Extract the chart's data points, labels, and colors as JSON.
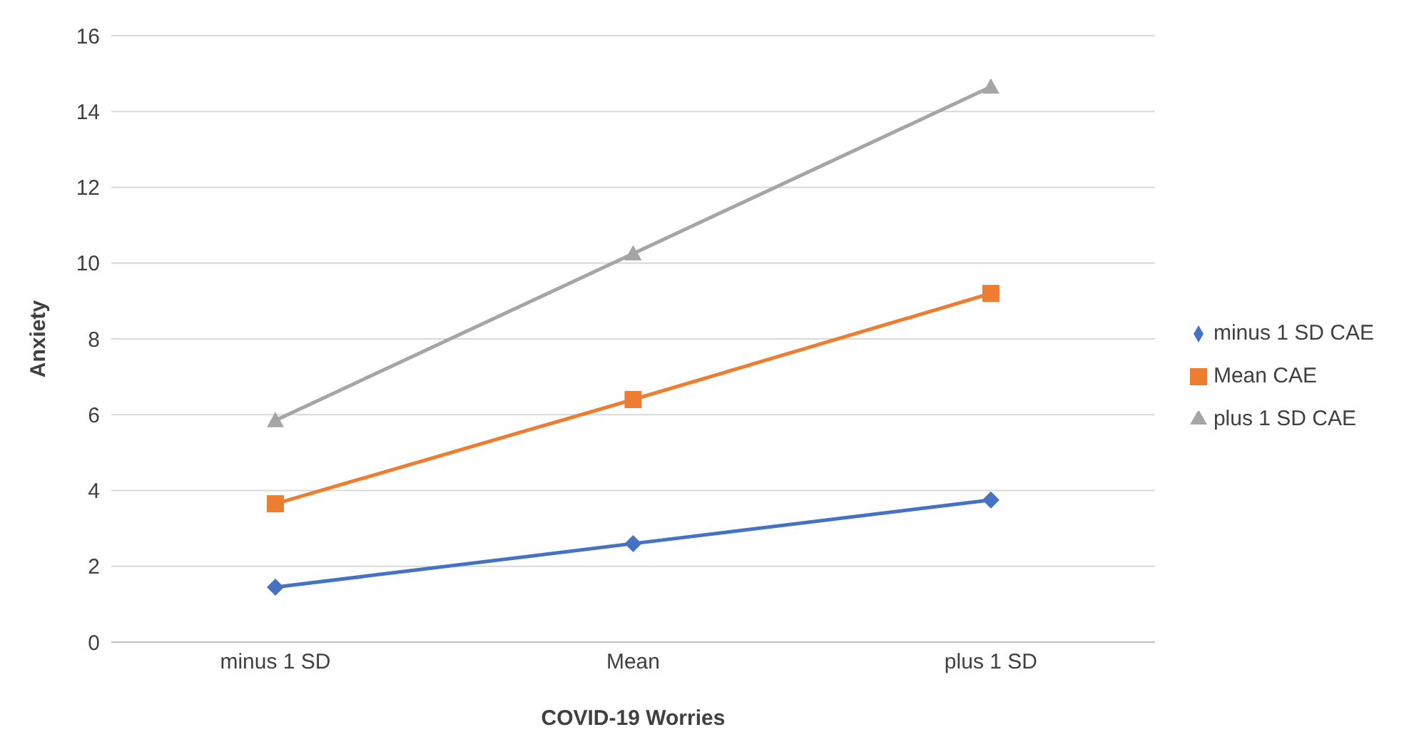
{
  "chart_data": {
    "type": "line",
    "xlabel": "COVID-19 Worries",
    "ylabel": "Anxiety",
    "categories": [
      "minus 1 SD",
      "Mean",
      "plus 1 SD"
    ],
    "series": [
      {
        "name": "minus 1 SD CAE",
        "color": "#4472c4",
        "marker": "diamond",
        "values": [
          1.45,
          2.6,
          3.75
        ]
      },
      {
        "name": "Mean CAE",
        "color": "#ed7d31",
        "marker": "square",
        "values": [
          3.65,
          6.4,
          9.2
        ]
      },
      {
        "name": "plus 1 SD CAE",
        "color": "#a5a5a5",
        "marker": "triangle",
        "values": [
          5.85,
          10.25,
          14.65
        ]
      }
    ],
    "ylim": [
      0,
      16
    ],
    "yticks": [
      0,
      2,
      4,
      6,
      8,
      10,
      12,
      14,
      16
    ],
    "grid": "y",
    "legend": "right",
    "line_style": "solid"
  }
}
